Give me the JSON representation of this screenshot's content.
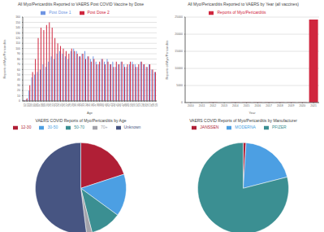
{
  "chart_data": [
    {
      "type": "bar",
      "title": "All Myo/Pericarditis Reported to VAERS Post COVID Vaccine by Dose",
      "x_label": "Age",
      "y_label": "Reports of Myo/Pericarditis",
      "categories": [
        "12",
        "13",
        "14",
        "15",
        "16",
        "17",
        "18",
        "19",
        "20",
        "21",
        "22",
        "23",
        "24",
        "25",
        "26",
        "27",
        "28",
        "29",
        "30",
        "31",
        "32",
        "33",
        "34",
        "35",
        "36",
        "37",
        "38",
        "39",
        "40",
        "41",
        "42",
        "43",
        "44",
        "45",
        "46",
        "47",
        "48",
        "49",
        "50",
        "51",
        "52",
        "53",
        "54",
        "55",
        "56",
        "57",
        "58",
        "59"
      ],
      "series": [
        {
          "name": "Post Dose 1",
          "color": "#6f95e3",
          "values": [
            2,
            3,
            20,
            45,
            50,
            55,
            60,
            70,
            65,
            75,
            85,
            80,
            90,
            95,
            90,
            85,
            80,
            95,
            100,
            95,
            85,
            90,
            95,
            85,
            80,
            85,
            75,
            70,
            80,
            75,
            80,
            70,
            75,
            65,
            70,
            75,
            70,
            65,
            70,
            75,
            70,
            65,
            75,
            70,
            65,
            70,
            60,
            55
          ]
        },
        {
          "name": "Post Dose 2",
          "color": "#d0263e",
          "values": [
            1,
            5,
            30,
            55,
            80,
            120,
            140,
            135,
            145,
            150,
            140,
            120,
            110,
            105,
            100,
            95,
            90,
            100,
            95,
            90,
            85,
            90,
            80,
            85,
            75,
            80,
            70,
            75,
            80,
            70,
            75,
            70,
            65,
            75,
            70,
            75,
            65,
            70,
            75,
            70,
            65,
            70,
            75,
            70,
            65,
            70,
            60,
            55
          ]
        }
      ],
      "ylim": [
        0,
        160
      ],
      "yticks": [
        0,
        10,
        20,
        30,
        40,
        50,
        60,
        70,
        80,
        90,
        100,
        110,
        120,
        130,
        140,
        150,
        160
      ],
      "grid": true,
      "legend": "top"
    },
    {
      "type": "bar",
      "title": "All Myo/Pericarditis Reported to VAERS by Year (all vaccines)",
      "x_label": "Year",
      "y_label": "Reports of Myo/Pericarditis",
      "categories": [
        "2010",
        "2011",
        "2012",
        "2013",
        "2014",
        "2015",
        "2016",
        "2017",
        "2018",
        "2019",
        "2020",
        "2021"
      ],
      "series": [
        {
          "name": "Reports of Myo/Pericarditis",
          "color": "#d0263e",
          "values": [
            20,
            25,
            30,
            25,
            30,
            35,
            30,
            40,
            35,
            40,
            50,
            24300
          ]
        }
      ],
      "ylim": [
        0,
        25000
      ],
      "yticks": [
        0,
        5000,
        10000,
        15000,
        20000,
        25000
      ],
      "grid": true,
      "legend": "top"
    },
    {
      "type": "pie",
      "title": "VAERS COVID Reports of Myo/Pericarditis by Age",
      "categories": [
        "12-30",
        "30-50",
        "50-70",
        "70+",
        "Unknown"
      ],
      "values": [
        20,
        15,
        11,
        2,
        52
      ],
      "colors": [
        "#b01f36",
        "#4c9fe3",
        "#3b8f92",
        "#a3a3ab",
        "#475582"
      ],
      "legend": "top"
    },
    {
      "type": "pie",
      "title": "VAERS COVID Reports of Myo/Pericarditis by Manufacturer",
      "categories": [
        "JANSSEN",
        "MODERNA",
        "PFIZER"
      ],
      "values": [
        1,
        20,
        79
      ],
      "colors": [
        "#b01f36",
        "#4c9fe3",
        "#3b8f92"
      ],
      "legend": "top"
    }
  ]
}
